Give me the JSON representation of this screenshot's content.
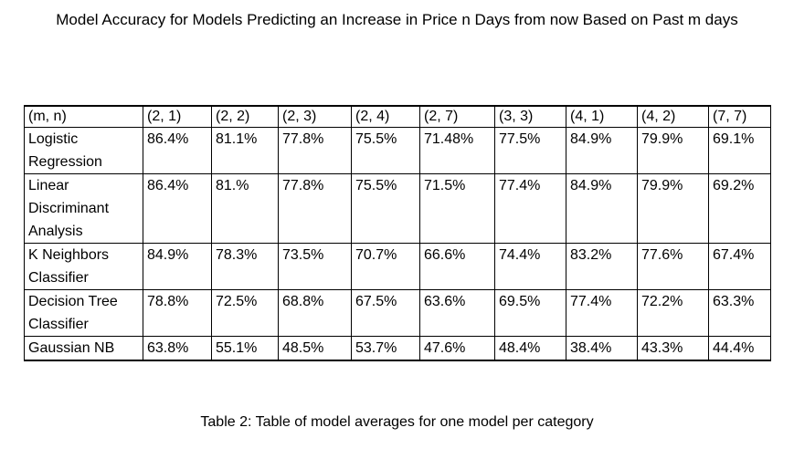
{
  "title": "Model Accuracy for Models Predicting an Increase in Price n Days from now Based on Past m days",
  "table": {
    "corner": "(m, n)",
    "columns": [
      "(2, 1)",
      "(2, 2)",
      "(2, 3)",
      "(2, 4)",
      "(2, 7)",
      "(3, 3)",
      "(4, 1)",
      "(4, 2)",
      "(7, 7)"
    ],
    "rows": [
      {
        "label": "Logistic Regression",
        "values": [
          "86.4%",
          "81.1%",
          "77.8%",
          "75.5%",
          "71.48%",
          "77.5%",
          "84.9%",
          "79.9%",
          "69.1%"
        ]
      },
      {
        "label": "Linear Discriminant Analysis",
        "values": [
          "86.4%",
          "81.%",
          "77.8%",
          "75.5%",
          "71.5%",
          "77.4%",
          "84.9%",
          "79.9%",
          "69.2%"
        ]
      },
      {
        "label": "K Neighbors Classifier",
        "values": [
          "84.9%",
          "78.3%",
          "73.5%",
          "70.7%",
          "66.6%",
          "74.4%",
          "83.2%",
          "77.6%",
          "67.4%"
        ]
      },
      {
        "label": "Decision Tree Classifier",
        "values": [
          "78.8%",
          "72.5%",
          "68.8%",
          "67.5%",
          "63.6%",
          "69.5%",
          "77.4%",
          "72.2%",
          "63.3%"
        ]
      },
      {
        "label": "Gaussian NB",
        "values": [
          "63.8%",
          "55.1%",
          "48.5%",
          "53.7%",
          "47.6%",
          "48.4%",
          "38.4%",
          "43.3%",
          "44.4%"
        ]
      }
    ]
  },
  "caption": "Table 2: Table of model averages for one model per category"
}
